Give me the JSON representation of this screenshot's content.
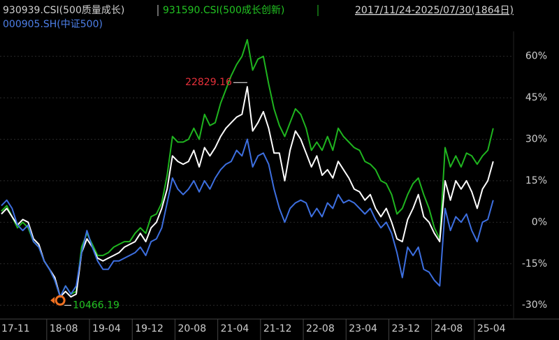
{
  "chart_data": {
    "type": "line",
    "subtitle": "2017/11/24-2025/07/30(1864日)",
    "categories": [
      "17-11",
      null,
      null,
      null,
      null,
      null,
      null,
      null,
      null,
      "18-08",
      null,
      null,
      null,
      null,
      null,
      null,
      null,
      "19-04",
      null,
      null,
      null,
      null,
      null,
      null,
      null,
      "19-12",
      null,
      null,
      null,
      null,
      null,
      null,
      null,
      "20-08",
      null,
      null,
      null,
      null,
      null,
      null,
      null,
      "21-04",
      null,
      null,
      null,
      null,
      null,
      null,
      null,
      "21-12",
      null,
      null,
      null,
      null,
      null,
      null,
      null,
      "22-08",
      null,
      null,
      null,
      null,
      null,
      null,
      null,
      "23-04",
      null,
      null,
      null,
      null,
      null,
      null,
      null,
      "23-12",
      null,
      null,
      null,
      null,
      null,
      null,
      null,
      "24-08",
      null,
      null,
      null,
      null,
      null,
      null,
      null,
      "25-04",
      null,
      null,
      null
    ],
    "series": [
      {
        "name": "931590.CSI(500成长创新)",
        "color": "#1fb51f",
        "values": [
          4,
          6,
          2,
          -2,
          0,
          -2,
          -7,
          -9,
          -14,
          -17,
          -21,
          -27,
          -23,
          -26,
          -25,
          -9,
          -4,
          -8,
          -12,
          -12,
          -11,
          -9,
          -8,
          -7,
          -7,
          -4,
          -2,
          -4,
          2,
          3,
          7,
          17,
          31,
          29,
          29,
          30,
          34,
          30,
          39,
          35,
          36,
          43,
          48,
          53,
          57,
          60,
          66,
          55,
          59,
          60,
          50,
          41,
          35,
          31,
          36,
          41,
          39,
          34,
          26,
          29,
          26,
          31,
          26,
          34,
          31,
          29,
          27,
          26,
          22,
          21,
          19,
          15,
          14,
          10,
          3,
          5,
          10,
          14,
          16,
          10,
          5,
          -2,
          -6,
          27,
          20,
          24,
          20,
          25,
          24,
          21,
          24,
          26,
          34
        ]
      },
      {
        "name": "930939.CSI(500质量成长)",
        "color": "#ffffff",
        "values": [
          3,
          5,
          2,
          -1,
          1,
          0,
          -6,
          -8,
          -14,
          -17,
          -20,
          -27,
          -25,
          -27,
          -26,
          -11,
          -6,
          -9,
          -13,
          -14,
          -13,
          -12,
          -11,
          -9,
          -8,
          -7,
          -4,
          -7,
          -2,
          0,
          5,
          12,
          24,
          22,
          21,
          22,
          26,
          20,
          27,
          24,
          27,
          31,
          34,
          36,
          38,
          39,
          49,
          33,
          36,
          40,
          34,
          25,
          25,
          15,
          26,
          33,
          30,
          25,
          20,
          24,
          17,
          19,
          16,
          22,
          19,
          16,
          12,
          11,
          8,
          10,
          5,
          2,
          5,
          0,
          -6,
          -7,
          1,
          5,
          10,
          2,
          0,
          -4,
          -7,
          15,
          8,
          15,
          12,
          15,
          11,
          5,
          12,
          15,
          22
        ]
      },
      {
        "name": "000905.SH(中证500)",
        "color": "#3d6fe0",
        "values": [
          6,
          8,
          5,
          -1,
          -3,
          -1,
          -7,
          -9,
          -14,
          -17,
          -21,
          -27,
          -23,
          -26,
          -23,
          -11,
          -3,
          -9,
          -14,
          -17,
          -17,
          -14,
          -14,
          -13,
          -12,
          -11,
          -9,
          -12,
          -7,
          -6,
          -2,
          7,
          16,
          12,
          10,
          12,
          15,
          11,
          15,
          12,
          16,
          19,
          21,
          22,
          26,
          24,
          30,
          20,
          24,
          25,
          21,
          12,
          5,
          0,
          5,
          7,
          8,
          7,
          2,
          5,
          2,
          7,
          5,
          10,
          7,
          8,
          7,
          5,
          3,
          5,
          1,
          -2,
          0,
          -4,
          -11,
          -20,
          -9,
          -12,
          -9,
          -17,
          -18,
          -21,
          -23,
          5,
          -3,
          2,
          0,
          3,
          -3,
          -7,
          0,
          1,
          8
        ]
      }
    ],
    "annotations": [
      "22829.16",
      "10466.19"
    ],
    "ylim": [
      -35,
      69
    ],
    "yticks": [
      {
        "value": 60,
        "label": "60%"
      },
      {
        "value": 45,
        "label": "45%"
      },
      {
        "value": 30,
        "label": "30%"
      },
      {
        "value": 15,
        "label": "15%"
      },
      {
        "value": 0,
        "label": "0%"
      },
      {
        "value": -15,
        "label": "-15%"
      },
      {
        "value": -30,
        "label": "-30%"
      }
    ],
    "grid": true
  }
}
